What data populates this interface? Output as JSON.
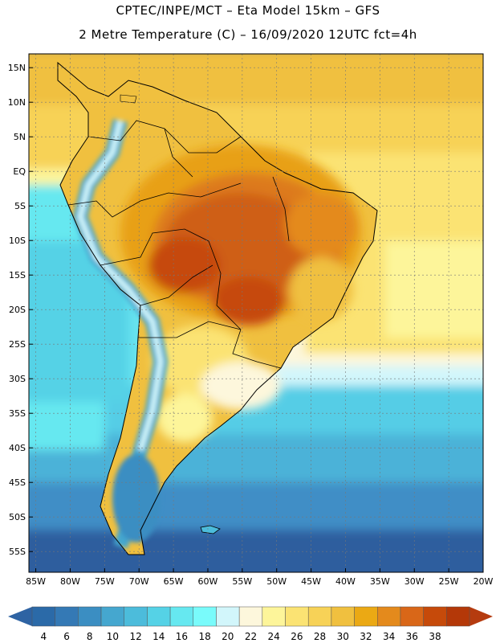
{
  "header": {
    "title_line1": "CPTEC/INPE/MCT –  Eta Model 15km – GFS",
    "title_line2": "2 Metre Temperature (C) – 16/09/2020 12UTC fct=4h"
  },
  "map": {
    "lon_range": [
      -86,
      -20
    ],
    "lat_range": [
      -58,
      17
    ],
    "lat_ticks": [
      "15N",
      "10N",
      "5N",
      "EQ",
      "5S",
      "10S",
      "15S",
      "20S",
      "25S",
      "30S",
      "35S",
      "40S",
      "45S",
      "50S",
      "55S"
    ],
    "lon_ticks": [
      "85W",
      "80W",
      "75W",
      "70W",
      "65W",
      "60W",
      "55W",
      "50W",
      "45W",
      "40W",
      "35W",
      "30W",
      "25W",
      "20W"
    ]
  },
  "colorbar": {
    "labels": [
      "4",
      "6",
      "8",
      "10",
      "12",
      "14",
      "16",
      "18",
      "20",
      "22",
      "24",
      "26",
      "28",
      "30",
      "32",
      "34",
      "36",
      "38"
    ],
    "colors": [
      "#2b6aa8",
      "#3479b5",
      "#3b8ec2",
      "#45a7cf",
      "#4cbcdb",
      "#55d2e6",
      "#66e8f0",
      "#79fbfb",
      "#d2f6fb",
      "#fdf7dc",
      "#fdf59a",
      "#fbe373",
      "#f7d257",
      "#f0c03f",
      "#eba914",
      "#e48a1c",
      "#d96718",
      "#c64a0a",
      "#b43808"
    ],
    "low_arrow_color": "#2e63a3",
    "high_arrow_color": "#b53b0f"
  }
}
